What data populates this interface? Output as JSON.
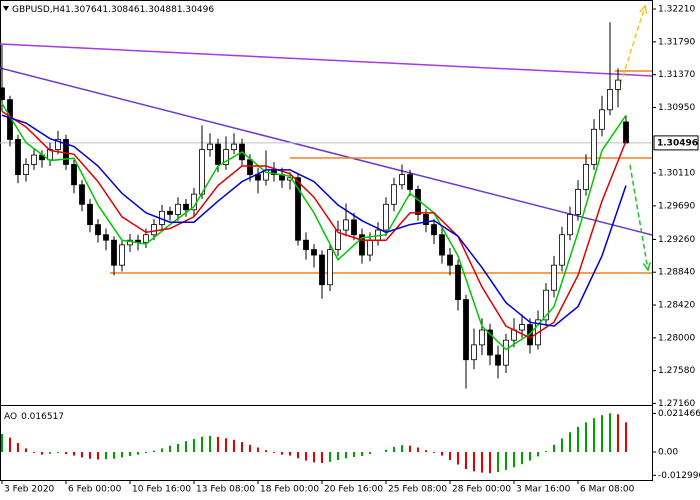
{
  "chart_data": [
    {
      "type": "candlestick",
      "title": "GBPUSD,H4",
      "x": [
        0,
        1,
        2,
        3,
        4,
        5,
        6,
        7,
        8,
        9,
        10,
        11,
        12,
        13,
        14,
        15,
        16,
        17,
        18,
        19,
        20,
        21,
        22,
        23,
        24,
        25,
        26,
        27,
        28,
        29,
        30,
        31,
        32,
        33,
        34,
        35,
        36,
        37,
        38,
        39,
        40,
        41,
        42,
        43,
        44,
        45,
        46,
        47,
        48,
        49,
        50,
        51,
        52,
        53,
        54,
        55,
        56,
        57,
        58,
        59,
        60,
        61,
        62,
        63,
        64,
        65,
        66,
        67,
        68,
        69,
        70,
        71,
        72,
        73,
        74,
        75,
        76,
        77,
        78
      ],
      "open": [
        1.312,
        1.3105,
        1.3054,
        1.3009,
        1.3022,
        1.3034,
        1.3028,
        1.3041,
        1.3054,
        1.3022,
        1.2996,
        1.2971,
        1.2945,
        1.2932,
        1.2925,
        1.2893,
        1.2919,
        1.2925,
        1.2922,
        1.2932,
        1.2945,
        1.2962,
        1.2958,
        1.2971,
        1.2964,
        1.2984,
        1.3041,
        1.3048,
        1.3022,
        1.3041,
        1.3048,
        1.3028,
        1.3009,
        1.3002,
        1.3015,
        1.3009,
        1.3002,
        1.3005,
        1.2925,
        1.2913,
        1.2906,
        1.2868,
        1.2913,
        1.2938,
        1.2951,
        1.2932,
        1.2906,
        1.2925,
        1.2938,
        1.2971,
        1.2996,
        1.3009,
        1.299,
        1.2958,
        1.2945,
        1.2932,
        1.2906,
        1.2893,
        1.2849,
        1.2772,
        1.2791,
        1.281,
        1.2778,
        1.2765,
        1.2797,
        1.281,
        1.2817,
        1.2791,
        1.2823,
        1.2861,
        1.2893,
        1.2932,
        1.2958,
        1.299,
        1.3022,
        1.3067,
        1.3092,
        1.3118,
        1.30764
      ],
      "high": [
        1.3175,
        1.311,
        1.306,
        1.303,
        1.3042,
        1.304,
        1.305,
        1.3065,
        1.306,
        1.3028,
        1.3002,
        1.2978,
        1.2952,
        1.294,
        1.293,
        1.2925,
        1.2933,
        1.2932,
        1.294,
        1.2952,
        1.297,
        1.2968,
        1.298,
        1.2978,
        1.2992,
        1.3072,
        1.3062,
        1.3055,
        1.3058,
        1.3062,
        1.3055,
        1.3035,
        1.3018,
        1.304,
        1.3025,
        1.3018,
        1.3012,
        1.301,
        1.2935,
        1.292,
        1.2912,
        1.292,
        1.295,
        1.2972,
        1.296,
        1.294,
        1.2935,
        1.2948,
        1.298,
        1.3005,
        1.3022,
        1.3015,
        1.2995,
        1.2965,
        1.2952,
        1.294,
        1.2915,
        1.29,
        1.2855,
        1.2812,
        1.2825,
        1.2818,
        1.279,
        1.2805,
        1.2825,
        1.283,
        1.2825,
        1.2835,
        1.287,
        1.2905,
        1.2942,
        1.2968,
        1.3002,
        1.3035,
        1.308,
        1.311,
        1.3204,
        1.3145,
        1.30846
      ],
      "low": [
        1.309,
        1.3045,
        1.2998,
        1.3,
        1.3015,
        1.3018,
        1.302,
        1.3035,
        1.3015,
        1.2985,
        1.2962,
        1.2935,
        1.2922,
        1.2912,
        1.288,
        1.2885,
        1.291,
        1.2912,
        1.2915,
        1.2925,
        1.2938,
        1.295,
        1.295,
        1.2955,
        1.2955,
        1.2978,
        1.3032,
        1.3012,
        1.3015,
        1.3035,
        1.302,
        1.3,
        1.2985,
        1.2995,
        1.3,
        1.2992,
        1.299,
        1.2918,
        1.29,
        1.289,
        1.285,
        1.286,
        1.2905,
        1.293,
        1.2925,
        1.2895,
        1.2898,
        1.2918,
        1.293,
        1.2962,
        1.299,
        1.2982,
        1.295,
        1.2935,
        1.292,
        1.2895,
        1.288,
        1.2835,
        1.2735,
        1.276,
        1.2778,
        1.2765,
        1.2748,
        1.2755,
        1.2788,
        1.28,
        1.278,
        1.2785,
        1.2815,
        1.2852,
        1.2885,
        1.2925,
        1.295,
        1.2982,
        1.3015,
        1.3058,
        1.3085,
        1.3095,
        1.30488
      ],
      "close": [
        1.3105,
        1.3054,
        1.3009,
        1.3022,
        1.3034,
        1.3028,
        1.3041,
        1.3054,
        1.3022,
        1.2996,
        1.2971,
        1.2945,
        1.2932,
        1.2925,
        1.2893,
        1.2919,
        1.2925,
        1.2922,
        1.2932,
        1.2945,
        1.2962,
        1.2958,
        1.2971,
        1.2964,
        1.2984,
        1.3041,
        1.3048,
        1.3022,
        1.3041,
        1.3048,
        1.3028,
        1.3009,
        1.3002,
        1.3015,
        1.3009,
        1.3002,
        1.3005,
        1.2925,
        1.2913,
        1.2906,
        1.2868,
        1.2913,
        1.2938,
        1.2951,
        1.2932,
        1.2906,
        1.2925,
        1.2938,
        1.2971,
        1.2996,
        1.3009,
        1.299,
        1.2958,
        1.2945,
        1.2932,
        1.2906,
        1.2893,
        1.2849,
        1.2772,
        1.2791,
        1.281,
        1.2778,
        1.2765,
        1.2797,
        1.281,
        1.2817,
        1.2791,
        1.2823,
        1.2861,
        1.2893,
        1.2932,
        1.2958,
        1.299,
        1.3022,
        1.3067,
        1.3092,
        1.3118,
        1.313,
        1.30496
      ],
      "up_color": "#ffffff",
      "down_color": "#000000",
      "edge_color": "#000000",
      "series": [
        {
          "color": "#00c800",
          "x": [
            0,
            3,
            6,
            9,
            12,
            15,
            18,
            21,
            24,
            27,
            30,
            33,
            36,
            39,
            42,
            45,
            48,
            51,
            54,
            57,
            60,
            63,
            66,
            69,
            72,
            75,
            78
          ],
          "values": [
            1.31,
            1.305,
            1.3027,
            1.303,
            1.297,
            1.2925,
            1.292,
            1.2945,
            1.2968,
            1.302,
            1.3038,
            1.3012,
            1.3007,
            1.296,
            1.29,
            1.2928,
            1.2932,
            1.2985,
            1.296,
            1.2905,
            1.2815,
            1.2785,
            1.2805,
            1.284,
            1.2935,
            1.304,
            1.3085
          ]
        },
        {
          "color": "#e00000",
          "x": [
            0,
            3,
            6,
            9,
            12,
            15,
            18,
            21,
            24,
            27,
            30,
            33,
            36,
            39,
            42,
            45,
            48,
            51,
            54,
            57,
            60,
            63,
            66,
            69,
            72,
            75,
            78
          ],
          "values": [
            1.309,
            1.307,
            1.304,
            1.3035,
            1.3,
            1.2955,
            1.2935,
            1.294,
            1.2955,
            1.2995,
            1.302,
            1.302,
            1.301,
            1.298,
            1.2935,
            1.2925,
            1.2925,
            1.296,
            1.296,
            1.293,
            1.2865,
            1.2815,
            1.28,
            1.282,
            1.288,
            1.2975,
            1.3052
          ]
        },
        {
          "color": "#0000d0",
          "x": [
            0,
            3,
            6,
            9,
            12,
            15,
            18,
            21,
            24,
            27,
            30,
            33,
            36,
            39,
            42,
            45,
            48,
            51,
            54,
            57,
            60,
            63,
            66,
            69,
            72,
            75,
            78
          ],
          "values": [
            1.3085,
            1.3075,
            1.3055,
            1.3045,
            1.302,
            1.2985,
            1.296,
            1.2948,
            1.2948,
            1.2975,
            1.3,
            1.3015,
            1.3015,
            1.3,
            1.297,
            1.295,
            1.2935,
            1.2945,
            1.295,
            1.293,
            1.289,
            1.2845,
            1.282,
            1.2815,
            1.284,
            1.2905,
            1.2995
          ]
        }
      ],
      "lines": [
        {
          "color": "#a43ae0",
          "x": [
            -0.25,
            81.25
          ],
          "values": [
            1.31762,
            1.31353
          ]
        },
        {
          "color": "#6a3ad0",
          "x": [
            -0.25,
            81.25
          ],
          "values": [
            1.31455,
            1.29317
          ]
        },
        {
          "color": "#f08020",
          "x": [
            36,
            81.25
          ],
          "values": [
            1.30303,
            1.30303
          ]
        },
        {
          "color": "#f08020",
          "x": [
            13.5,
            81.25
          ],
          "values": [
            1.2883,
            1.2883
          ]
        },
        {
          "color": "#f08020",
          "x": [
            76.6,
            81.25
          ],
          "values": [
            1.31417,
            1.31417
          ]
        },
        {
          "color": "#f5c518",
          "arrow": true,
          "x": [
            77,
            80.4
          ],
          "values": [
            1.3115,
            1.3225
          ]
        },
        {
          "color": "#22c022",
          "arrow": true,
          "x": [
            78.5,
            80.75
          ],
          "values": [
            1.30213,
            1.2887
          ]
        }
      ],
      "bid_color": "#c0c0c0",
      "xlim": [
        -0.25,
        81.25
      ],
      "ylim": [
        1.2714,
        1.323
      ],
      "yticks": [
        {
          "value": 1.3221,
          "label": "1.32210"
        },
        {
          "value": 1.3179,
          "label": "1.31790"
        },
        {
          "value": 1.3137,
          "label": "1.31370"
        },
        {
          "value": 1.3095,
          "label": "1.30950"
        },
        {
          "value": 1.3011,
          "label": "1.30110"
        },
        {
          "value": 1.2969,
          "label": "1.29690"
        },
        {
          "value": 1.2926,
          "label": "1.29260"
        },
        {
          "value": 1.2884,
          "label": "1.28840"
        },
        {
          "value": 1.2842,
          "label": "1.28420"
        },
        {
          "value": 1.28,
          "label": "1.28000"
        },
        {
          "value": 1.2758,
          "label": "1.27580"
        },
        {
          "value": 1.2716,
          "label": "1.27160"
        }
      ]
    },
    {
      "type": "bar",
      "name": "AO",
      "x": [
        0,
        1,
        2,
        3,
        4,
        5,
        6,
        7,
        8,
        9,
        10,
        11,
        12,
        13,
        14,
        15,
        16,
        17,
        18,
        19,
        20,
        21,
        22,
        23,
        24,
        25,
        26,
        27,
        28,
        29,
        30,
        31,
        32,
        33,
        34,
        35,
        36,
        37,
        38,
        39,
        40,
        41,
        42,
        43,
        44,
        45,
        46,
        47,
        48,
        49,
        50,
        51,
        52,
        53,
        54,
        55,
        56,
        57,
        58,
        59,
        60,
        61,
        62,
        63,
        64,
        65,
        66,
        67,
        68,
        69,
        70,
        71,
        72,
        73,
        74,
        75,
        76,
        77,
        78
      ],
      "values": [
        0.01,
        0.008,
        0.005,
        0.002,
        -0.0005,
        -0.0015,
        -0.001,
        -0.0005,
        -0.0012,
        -0.002,
        -0.003,
        -0.0038,
        -0.0042,
        -0.004,
        -0.0038,
        -0.003,
        -0.0022,
        -0.0015,
        -0.0006,
        0.0008,
        0.002,
        0.0035,
        0.0045,
        0.006,
        0.0072,
        0.0085,
        0.009,
        0.0084,
        0.0076,
        0.0068,
        0.0055,
        0.004,
        0.0025,
        0.001,
        -0.0005,
        -0.0015,
        -0.002,
        -0.0035,
        -0.0048,
        -0.0058,
        -0.0062,
        -0.0055,
        -0.0045,
        -0.0035,
        -0.0028,
        -0.0022,
        -0.0012,
        0.0,
        0.0012,
        0.0028,
        0.0038,
        0.0035,
        0.0025,
        0.001,
        -0.0005,
        -0.002,
        -0.0045,
        -0.007,
        -0.0095,
        -0.0108,
        -0.0115,
        -0.0118,
        -0.0112,
        -0.01,
        -0.0085,
        -0.0068,
        -0.0048,
        -0.0025,
        0.0005,
        0.004,
        0.0075,
        0.011,
        0.014,
        0.0165,
        0.0188,
        0.0205,
        0.0215,
        0.021,
        0.016517
      ],
      "up_color": "#00a000",
      "down_color": "#e00000",
      "xlim": [
        -0.25,
        81.25
      ],
      "ylim": [
        -0.0145,
        0.0245
      ],
      "yticks": [
        0.021466,
        {
          "value": 0,
          "label": "0.00"
        },
        -0.012996
      ],
      "xticks": [
        {
          "value": 0,
          "label": "3 Feb 2020"
        },
        {
          "value": 8,
          "label": "6 Feb 00:00"
        },
        {
          "value": 16,
          "label": "10 Feb 16:00"
        },
        {
          "value": 24,
          "label": "13 Feb 08:00"
        },
        {
          "value": 32,
          "label": "18 Feb 00:00"
        },
        {
          "value": 40,
          "label": "20 Feb 16:00"
        },
        {
          "value": 48,
          "label": "25 Feb 08:00"
        },
        {
          "value": 56,
          "label": "28 Feb 00:00"
        },
        {
          "value": 64,
          "label": "3 Mar 16:00"
        },
        {
          "value": 72,
          "label": "6 Mar 08:00"
        }
      ]
    }
  ]
}
